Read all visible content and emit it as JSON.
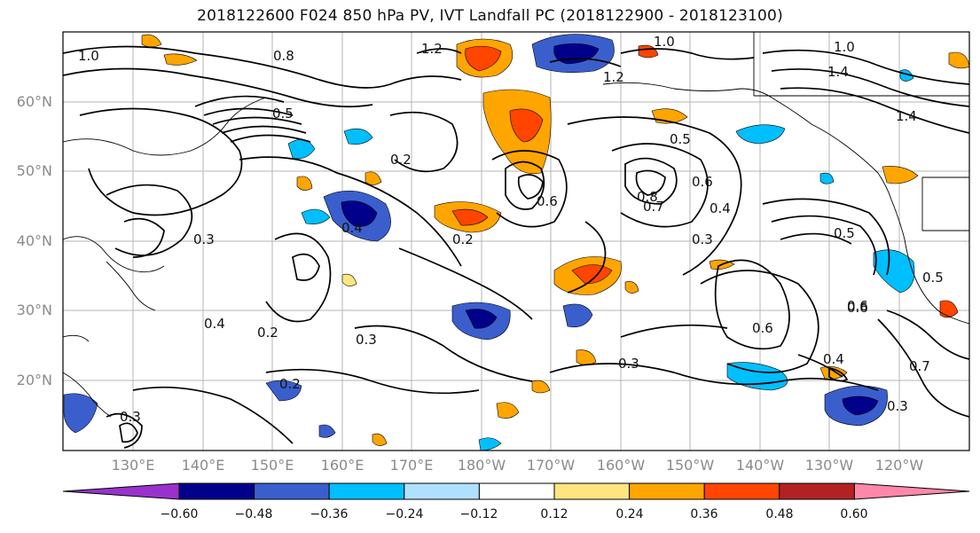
{
  "title": "2018122600 F024 850 hPa PV, IVT Landfall PC (2018122900 - 2018123100)",
  "lat_labels": [
    "60°N",
    "50°N",
    "40°N",
    "30°N",
    "20°N"
  ],
  "lon_labels": [
    "130°E",
    "140°E",
    "150°E",
    "160°E",
    "170°E",
    "180°W",
    "170°W",
    "160°W",
    "150°W",
    "140°W",
    "130°W",
    "120°W"
  ],
  "colorbar": {
    "ticks": [
      "−0.60",
      "−0.48",
      "−0.36",
      "−0.24",
      "−0.12",
      "0.12",
      "0.24",
      "0.36",
      "0.48",
      "0.60"
    ],
    "colors": [
      "#9932cc",
      "#00008b",
      "#3a5fcd",
      "#00bfff",
      "#b0e0ff",
      "#ffffff",
      "#ffe57f",
      "#ffa500",
      "#ff4500",
      "#b22222",
      "#ff88aa"
    ]
  },
  "contour_labels": [
    "1.0",
    "0.8",
    "1.2",
    "1.0",
    "1.2",
    "0.5",
    "0.5",
    "1.4",
    "0.6",
    "0.5",
    "0.2",
    "0.4",
    "0.6",
    "0.8",
    "0.7",
    "0.6",
    "0.2",
    "0.3",
    "0.4",
    "0.5",
    "0.3",
    "0.4",
    "0.2",
    "0.3",
    "0.3",
    "0.6",
    "0.6",
    "0.4",
    "0.2",
    "0.3",
    "0.3",
    "0.7",
    "1.4",
    "1.0"
  ]
}
